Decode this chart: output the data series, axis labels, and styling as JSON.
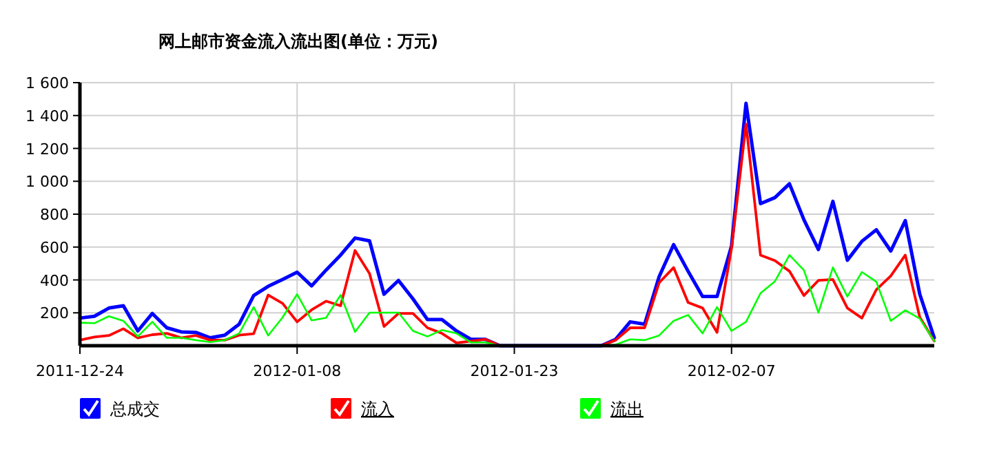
{
  "chart_data": {
    "type": "line",
    "title": "网上邮市资金流入流出图(单位：万元)",
    "x": [
      "2011-12-24",
      "2011-12-25",
      "2011-12-26",
      "2011-12-27",
      "2011-12-28",
      "2011-12-29",
      "2011-12-30",
      "2011-12-31",
      "2012-01-01",
      "2012-01-02",
      "2012-01-03",
      "2012-01-04",
      "2012-01-05",
      "2012-01-06",
      "2012-01-07",
      "2012-01-08",
      "2012-01-09",
      "2012-01-10",
      "2012-01-11",
      "2012-01-12",
      "2012-01-13",
      "2012-01-14",
      "2012-01-15",
      "2012-01-16",
      "2012-01-17",
      "2012-01-18",
      "2012-01-19",
      "2012-01-20",
      "2012-01-21",
      "2012-01-22",
      "2012-01-23",
      "2012-01-24",
      "2012-01-25",
      "2012-01-26",
      "2012-01-27",
      "2012-01-28",
      "2012-01-29",
      "2012-01-30",
      "2012-01-31",
      "2012-02-01",
      "2012-02-02",
      "2012-02-03",
      "2012-02-04",
      "2012-02-05",
      "2012-02-06",
      "2012-02-07",
      "2012-02-08",
      "2012-02-09",
      "2012-02-10",
      "2012-02-11",
      "2012-02-12",
      "2012-02-13",
      "2012-02-14",
      "2012-02-15",
      "2012-02-16",
      "2012-02-17",
      "2012-02-18",
      "2012-02-19",
      "2012-02-20",
      "2012-02-21"
    ],
    "series": [
      {
        "name": "总成交",
        "color": "#0000ff",
        "values": [
          168,
          179,
          229,
          243,
          90,
          196,
          109,
          84,
          81,
          48,
          64,
          131,
          305,
          361,
          403,
          447,
          364,
          460,
          551,
          655,
          638,
          313,
          397,
          285,
          159,
          159,
          90,
          39,
          39,
          0,
          0,
          0,
          0,
          0,
          0,
          0,
          0,
          39,
          145,
          131,
          420,
          615,
          453,
          299,
          299,
          607,
          1474,
          864,
          901,
          985,
          766,
          585,
          878,
          520,
          635,
          705,
          576,
          761,
          313,
          48
        ]
      },
      {
        "name": "流入",
        "color": "#ff0000",
        "values": [
          34,
          53,
          62,
          103,
          48,
          67,
          75,
          48,
          62,
          34,
          34,
          64,
          73,
          308,
          257,
          145,
          218,
          271,
          243,
          579,
          439,
          117,
          196,
          196,
          109,
          75,
          17,
          28,
          39,
          0,
          0,
          0,
          0,
          0,
          0,
          0,
          0,
          34,
          109,
          109,
          383,
          475,
          263,
          229,
          81,
          593,
          1348,
          551,
          517,
          453,
          305,
          397,
          403,
          229,
          168,
          341,
          425,
          551,
          173,
          28
        ]
      },
      {
        "name": "流出",
        "color": "#00ff00",
        "values": [
          140,
          137,
          179,
          151,
          56,
          145,
          48,
          48,
          34,
          22,
          34,
          75,
          235,
          62,
          173,
          313,
          154,
          170,
          308,
          84,
          201,
          201,
          201,
          90,
          56,
          95,
          75,
          20,
          20,
          0,
          0,
          0,
          0,
          0,
          0,
          0,
          0,
          6,
          39,
          34,
          62,
          151,
          187,
          75,
          235,
          90,
          145,
          319,
          392,
          551,
          459,
          201,
          476,
          299,
          448,
          389,
          151,
          215,
          165,
          28
        ]
      }
    ],
    "xlim": [
      "2011-12-24",
      "2012-02-21"
    ],
    "xticks": [
      "2011-12-24",
      "2012-01-08",
      "2012-01-23",
      "2012-02-07"
    ],
    "ylim": [
      0,
      1600
    ],
    "yticks": [
      {
        "value": 200,
        "label": "200"
      },
      {
        "value": 400,
        "label": "400"
      },
      {
        "value": 600,
        "label": "600"
      },
      {
        "value": 800,
        "label": "800"
      },
      {
        "value": 1000,
        "label": "1 000"
      },
      {
        "value": 1200,
        "label": "1 200"
      },
      {
        "value": 1400,
        "label": "1 400"
      },
      {
        "value": 1600,
        "label": "1 600"
      }
    ],
    "grid": true,
    "legend": "bottom",
    "marker": "none",
    "line_style": "solid"
  }
}
